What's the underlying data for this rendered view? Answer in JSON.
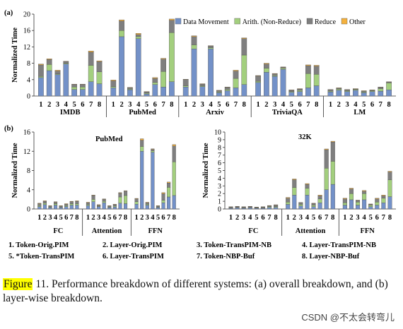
{
  "colors": {
    "data_movement": "#7391c8",
    "arith": "#a3cf7e",
    "reduce": "#7f7f7f",
    "other": "#f4b13d"
  },
  "legend": [
    {
      "key": "data_movement",
      "label": "Data Movement"
    },
    {
      "key": "arith",
      "label": "Arith. (Non-Reduce)"
    },
    {
      "key": "reduce",
      "label": "Reduce"
    },
    {
      "key": "other",
      "label": "Other"
    }
  ],
  "systems": [
    "1. Token-Orig.PIM",
    "2. Layer-Orig.PIM",
    "3. Token-TransPIM-NB",
    "4. Layer-TransPIM-NB",
    "5. *Token-TransPIM",
    "6. Layer-TransPIM",
    "7. Token-NBP-Buf",
    "8. Layer-NBP-Buf"
  ],
  "caption": {
    "figure_word": "Figure",
    "rest": " 11.   Performance breakdown of different systems: (a) overall breakdown, and (b) layer-wise breakdown."
  },
  "watermark": "CSDN @不太会转弯儿",
  "chart_data": [
    {
      "panel": "(a)",
      "type": "bar",
      "stacked": true,
      "ylabel": "Normalized Time",
      "ylim": [
        0,
        20
      ],
      "yticks": [
        0,
        4,
        8,
        12,
        16,
        20
      ],
      "bar_labels": [
        "1",
        "2",
        "3",
        "4",
        "5",
        "6",
        "7",
        "8"
      ],
      "groups": [
        "IMDB",
        "PubMed",
        "Arxiv",
        "TriviaQA",
        "LM"
      ],
      "series_order": [
        "data_movement",
        "arith",
        "reduce",
        "other"
      ],
      "data": [
        [
          [
            4.5,
            0.3,
            2.8,
            0.2
          ],
          [
            6.2,
            1.5,
            1.2,
            0.2
          ],
          [
            5.2,
            0.2,
            0.7,
            0.2
          ],
          [
            7.8,
            0.2,
            0.4,
            0.1
          ],
          [
            1.6,
            0.6,
            0.6,
            0.1
          ],
          [
            1.6,
            0.6,
            0.6,
            0.1
          ],
          [
            3.5,
            4.0,
            3.2,
            0.3
          ],
          [
            3.0,
            2.9,
            2.5,
            0.2
          ]
        ],
        [
          [
            2.0,
            0.3,
            1.4,
            0.2
          ],
          [
            14.5,
            1.5,
            2.3,
            0.3
          ],
          [
            1.5,
            0.2,
            0.3,
            0.1
          ],
          [
            14.0,
            0.5,
            0.5,
            0.3
          ],
          [
            0.5,
            0.2,
            0.3,
            0.1
          ],
          [
            2.8,
            0.5,
            1.0,
            0.2
          ],
          [
            2.2,
            3.8,
            3.0,
            0.2
          ],
          [
            3.5,
            12.0,
            3.0,
            0.3
          ]
        ],
        [
          [
            2.2,
            0.3,
            1.5,
            0.1
          ],
          [
            11.5,
            1.0,
            2.0,
            0.2
          ],
          [
            2.3,
            0.2,
            0.4,
            0.1
          ],
          [
            11.5,
            0.3,
            0.4,
            0.1
          ],
          [
            0.8,
            0.2,
            0.3,
            0.1
          ],
          [
            1.3,
            0.3,
            0.5,
            0.1
          ],
          [
            2.0,
            2.3,
            1.8,
            0.2
          ],
          [
            2.8,
            7.2,
            4.0,
            0.2
          ]
        ],
        [
          [
            3.3,
            0.3,
            1.3,
            0.1
          ],
          [
            5.8,
            1.0,
            1.0,
            0.2
          ],
          [
            4.8,
            0.2,
            0.4,
            0.1
          ],
          [
            6.5,
            0.3,
            0.2,
            0.1
          ],
          [
            0.9,
            0.2,
            0.3,
            0.1
          ],
          [
            1.1,
            0.3,
            0.3,
            0.1
          ],
          [
            2.0,
            3.5,
            1.9,
            0.2
          ],
          [
            2.5,
            2.8,
            2.0,
            0.2
          ]
        ],
        [
          [
            1.0,
            0.2,
            0.3,
            0.1
          ],
          [
            1.4,
            0.3,
            0.2,
            0.1
          ],
          [
            1.1,
            0.2,
            0.2,
            0.1
          ],
          [
            1.4,
            0.2,
            0.1,
            0.1
          ],
          [
            0.8,
            0.2,
            0.2,
            0.1
          ],
          [
            1.1,
            0.2,
            0.1,
            0.1
          ],
          [
            1.2,
            0.6,
            0.3,
            0.1
          ],
          [
            1.5,
            1.7,
            0.2,
            0.1
          ]
        ]
      ]
    },
    {
      "panel": "(b)",
      "title": "PubMed",
      "type": "bar",
      "stacked": true,
      "ylabel": "Normalized Time",
      "ylim": [
        0,
        16
      ],
      "yticks": [
        0,
        4,
        8,
        12,
        16
      ],
      "bar_labels": [
        "1",
        "2",
        "3",
        "4",
        "5",
        "6",
        "7",
        "8"
      ],
      "groups": [
        "FC",
        "Attention",
        "FFN"
      ],
      "series_order": [
        "data_movement",
        "arith",
        "reduce",
        "other"
      ],
      "data": [
        [
          [
            0.5,
            0.2,
            0.4,
            0.1
          ],
          [
            0.9,
            0.3,
            0.4,
            0.1
          ],
          [
            0.3,
            0.1,
            0.2,
            0.1
          ],
          [
            0.8,
            0.3,
            0.3,
            0.1
          ],
          [
            0.3,
            0.1,
            0.2,
            0.1
          ],
          [
            0.5,
            0.2,
            0.3,
            0.1
          ],
          [
            0.8,
            0.3,
            0.4,
            0.1
          ],
          [
            0.8,
            0.3,
            0.5,
            0.1
          ]
        ],
        [
          [
            0.7,
            0.2,
            0.4,
            0.1
          ],
          [
            1.5,
            0.5,
            0.8,
            0.1
          ],
          [
            0.5,
            0.1,
            0.2,
            0.1
          ],
          [
            1.3,
            0.3,
            0.4,
            0.1
          ],
          [
            0.3,
            0.1,
            0.2,
            0.1
          ],
          [
            0.4,
            0.2,
            0.3,
            0.1
          ],
          [
            1.2,
            1.3,
            0.8,
            0.1
          ],
          [
            1.1,
            1.7,
            0.9,
            0.1
          ]
        ],
        [
          [
            1.0,
            0.5,
            0.6,
            0.1
          ],
          [
            12.0,
            1.0,
            1.3,
            0.3
          ],
          [
            0.8,
            0.2,
            0.3,
            0.1
          ],
          [
            11.8,
            0.3,
            0.3,
            0.1
          ],
          [
            0.3,
            0.1,
            0.2,
            0.1
          ],
          [
            1.3,
            0.5,
            1.4,
            0.2
          ],
          [
            2.5,
            2.0,
            0.9,
            0.2
          ],
          [
            2.8,
            7.0,
            3.3,
            0.3
          ]
        ]
      ]
    },
    {
      "panel": "(b)",
      "title": "32K",
      "type": "bar",
      "stacked": true,
      "ylabel": "Normalized Time",
      "ylim": [
        0,
        10
      ],
      "yticks": [
        0,
        1,
        2,
        3,
        4,
        5,
        6,
        7,
        8,
        9,
        10
      ],
      "bar_labels": [
        "1",
        "2",
        "3",
        "4",
        "5",
        "6",
        "7",
        "8"
      ],
      "groups": [
        "FC",
        "Attention",
        "FFN"
      ],
      "series_order": [
        "data_movement",
        "arith",
        "reduce",
        "other"
      ],
      "data": [
        [
          [
            0.1,
            0.05,
            0.1,
            0.05
          ],
          [
            0.15,
            0.05,
            0.1,
            0.05
          ],
          [
            0.1,
            0.05,
            0.1,
            0.05
          ],
          [
            0.15,
            0.05,
            0.1,
            0.05
          ],
          [
            0.1,
            0.05,
            0.05,
            0.05
          ],
          [
            0.1,
            0.05,
            0.1,
            0.05
          ],
          [
            0.2,
            0.1,
            0.1,
            0.05
          ],
          [
            0.2,
            0.1,
            0.2,
            0.05
          ]
        ],
        [
          [
            0.6,
            0.3,
            0.5,
            0.1
          ],
          [
            1.8,
            1.0,
            1.0,
            0.1
          ],
          [
            0.4,
            0.2,
            0.2,
            0.05
          ],
          [
            1.8,
            0.9,
            0.5,
            0.1
          ],
          [
            0.3,
            0.2,
            0.2,
            0.05
          ],
          [
            0.8,
            0.5,
            0.4,
            0.1
          ],
          [
            2.5,
            2.8,
            2.4,
            0.1
          ],
          [
            3.2,
            3.0,
            2.5,
            0.1
          ]
        ],
        [
          [
            0.5,
            0.3,
            0.5,
            0.1
          ],
          [
            1.2,
            0.8,
            0.6,
            0.1
          ],
          [
            0.5,
            0.4,
            0.2,
            0.05
          ],
          [
            1.2,
            0.8,
            0.3,
            0.1
          ],
          [
            0.3,
            0.2,
            0.1,
            0.05
          ],
          [
            0.5,
            0.4,
            0.4,
            0.1
          ],
          [
            0.8,
            0.6,
            0.3,
            0.1
          ],
          [
            1.6,
            2.2,
            1.0,
            0.1
          ]
        ]
      ]
    }
  ]
}
